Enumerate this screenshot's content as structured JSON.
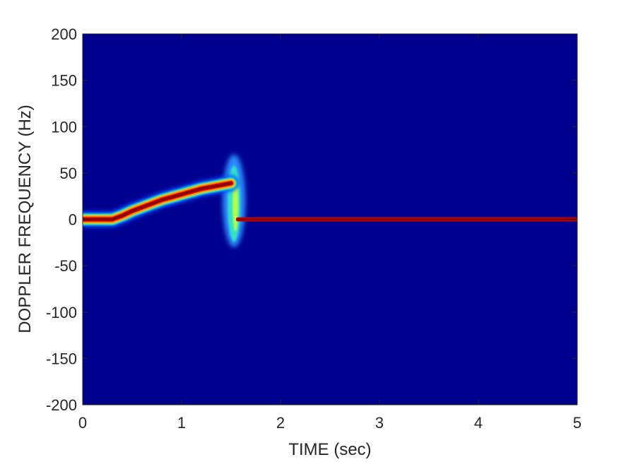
{
  "chart_data": {
    "type": "heatmap",
    "title": "",
    "xlabel": "TIME (sec)",
    "ylabel": "DOPPLER FREQUENCY (Hz)",
    "xlim": [
      0,
      5
    ],
    "ylim": [
      -200,
      200
    ],
    "xticks": [
      0,
      1,
      2,
      3,
      4,
      5
    ],
    "yticks": [
      200,
      150,
      100,
      50,
      0,
      -50,
      -100,
      -150,
      -200
    ],
    "xtick_labels": [
      "0",
      "1",
      "2",
      "3",
      "4",
      "5"
    ],
    "ytick_labels": [
      "200",
      "150",
      "100",
      "50",
      "0",
      "-50",
      "-100",
      "-150",
      "-200"
    ],
    "colormap": "jet",
    "background_color": "#00008f",
    "grid": false,
    "legend": "none",
    "doppler_track": [
      {
        "time": 0.0,
        "freq": 0
      },
      {
        "time": 0.3,
        "freq": 0
      },
      {
        "time": 0.4,
        "freq": 4
      },
      {
        "time": 0.5,
        "freq": 9
      },
      {
        "time": 0.6,
        "freq": 13
      },
      {
        "time": 0.7,
        "freq": 17
      },
      {
        "time": 0.8,
        "freq": 21
      },
      {
        "time": 0.9,
        "freq": 24
      },
      {
        "time": 1.0,
        "freq": 27
      },
      {
        "time": 1.1,
        "freq": 30
      },
      {
        "time": 1.2,
        "freq": 33
      },
      {
        "time": 1.3,
        "freq": 35
      },
      {
        "time": 1.4,
        "freq": 37
      },
      {
        "time": 1.5,
        "freq": 39
      },
      {
        "time": 1.57,
        "freq": 0
      },
      {
        "time": 5.0,
        "freq": 0
      }
    ],
    "transient": {
      "time": 1.53,
      "freq_min": -30,
      "freq_max": 70
    }
  }
}
